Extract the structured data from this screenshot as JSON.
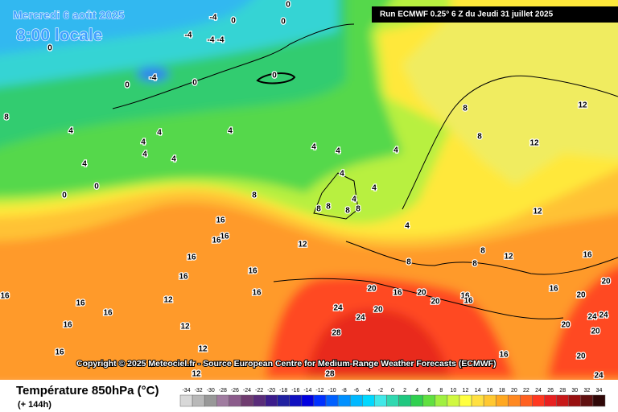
{
  "header": {
    "date": "Mercredi 6 août 2025",
    "time": "8:00 locale",
    "run": "Run ECMWF 0.25° 6 Z du Jeudi 31 juillet 2025"
  },
  "map": {
    "contour_labels": [
      -4,
      0,
      0,
      0,
      -4,
      -4,
      -4,
      0,
      -4,
      0,
      0,
      0,
      8,
      4,
      4,
      4,
      4,
      4,
      4,
      4,
      4,
      4,
      4,
      8,
      8,
      12,
      12,
      4,
      4,
      4,
      0,
      0,
      8,
      8,
      8,
      8,
      8,
      16,
      16,
      16,
      12,
      4,
      12,
      8,
      12,
      8,
      16,
      8,
      16,
      16,
      16,
      16,
      16,
      20,
      16,
      20,
      20,
      16,
      16,
      16,
      20,
      20,
      12,
      16,
      16,
      24,
      20,
      24,
      24,
      24,
      16,
      12,
      20,
      20,
      28,
      12,
      16,
      16,
      20,
      12,
      28,
      24
    ]
  },
  "copyright": "Copyright © 2025 Meteociel.fr - Source European Centre for Medium-Range Weather Forecasts (ECMWF)",
  "legend": {
    "title": "Température 850hPa (°C)",
    "lead": "(+ 144h)",
    "values": [
      -34,
      -32,
      -30,
      -28,
      -26,
      -24,
      -22,
      -20,
      -18,
      -16,
      -14,
      -12,
      -10,
      -8,
      -6,
      -4,
      -2,
      0,
      2,
      4,
      6,
      8,
      10,
      12,
      14,
      16,
      18,
      20,
      22,
      24,
      26,
      28,
      30,
      32,
      34
    ],
    "colors": [
      "#d8d8d8",
      "#b8b8b8",
      "#989898",
      "#a07ca0",
      "#8c5c8c",
      "#703c70",
      "#5a2c7a",
      "#3c1c8c",
      "#2020a0",
      "#1010c0",
      "#0000e0",
      "#0030ff",
      "#0060ff",
      "#0090ff",
      "#00b8ff",
      "#00d8ff",
      "#40e8e8",
      "#30d8b0",
      "#20c880",
      "#30d050",
      "#60e040",
      "#a0f040",
      "#d0f840",
      "#ffff40",
      "#ffe040",
      "#ffc830",
      "#ffa820",
      "#ff8820",
      "#ff6020",
      "#ff3820",
      "#e82020",
      "#c81818",
      "#981010",
      "#601010",
      "#300808"
    ]
  }
}
